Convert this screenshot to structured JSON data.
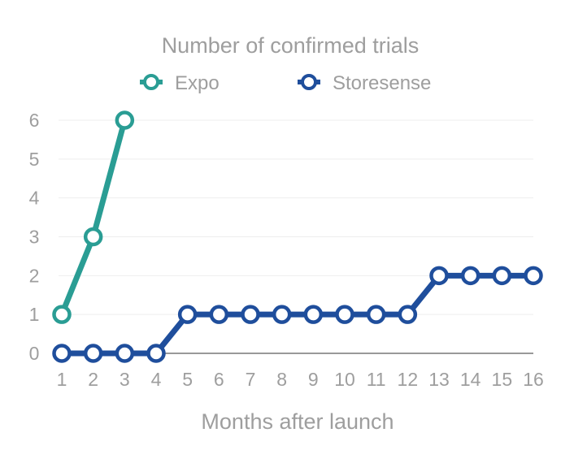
{
  "chart_data": {
    "type": "line",
    "title": "Number of confirmed trials",
    "xlabel": "Months after launch",
    "ylabel": "",
    "x": [
      1,
      2,
      3,
      4,
      5,
      6,
      7,
      8,
      9,
      10,
      11,
      12,
      13,
      14,
      15,
      16
    ],
    "xlim": [
      1,
      16
    ],
    "ylim": [
      0,
      6
    ],
    "yticks": [
      0,
      1,
      2,
      3,
      4,
      5,
      6
    ],
    "grid": true,
    "legend_position": "top",
    "series": [
      {
        "name": "Expo",
        "color": "#2a9d94",
        "x": [
          1,
          2,
          3
        ],
        "values": [
          1,
          3,
          6
        ]
      },
      {
        "name": "Storesense",
        "color": "#1f4e9c",
        "x": [
          1,
          2,
          3,
          4,
          5,
          6,
          7,
          8,
          9,
          10,
          11,
          12,
          13,
          14,
          15,
          16
        ],
        "values": [
          0,
          0,
          0,
          0,
          1,
          1,
          1,
          1,
          1,
          1,
          1,
          1,
          2,
          2,
          2,
          2
        ]
      }
    ]
  }
}
